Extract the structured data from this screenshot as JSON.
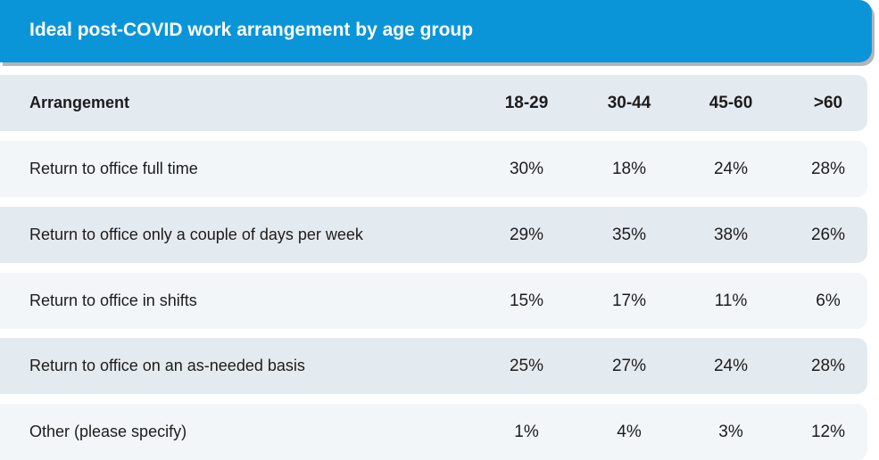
{
  "title": "Ideal post-COVID work arrangement by age group",
  "colors": {
    "title_bar": "#0a95d9",
    "row_dark": "#e4ebf0",
    "row_light": "#f2f6f9",
    "text": "#1c1c1c",
    "title_text": "#ffffff"
  },
  "chart_data": {
    "type": "table",
    "title": "Ideal post-COVID work arrangement by age group",
    "row_header": "Arrangement",
    "columns": [
      "18-29",
      "30-44",
      "45-60",
      ">60"
    ],
    "rows": [
      {
        "label": "Return to office full time",
        "values": [
          "30%",
          "18%",
          "24%",
          "28%"
        ]
      },
      {
        "label": "Return to office only a couple of days per week",
        "values": [
          "29%",
          "35%",
          "38%",
          "26%"
        ]
      },
      {
        "label": "Return to office in shifts",
        "values": [
          "15%",
          "17%",
          "11%",
          "6%"
        ]
      },
      {
        "label": "Return to office on an as-needed basis",
        "values": [
          "25%",
          "27%",
          "24%",
          "28%"
        ]
      },
      {
        "label": "Other (please specify)",
        "values": [
          "1%",
          "4%",
          "3%",
          "12%"
        ]
      }
    ]
  }
}
